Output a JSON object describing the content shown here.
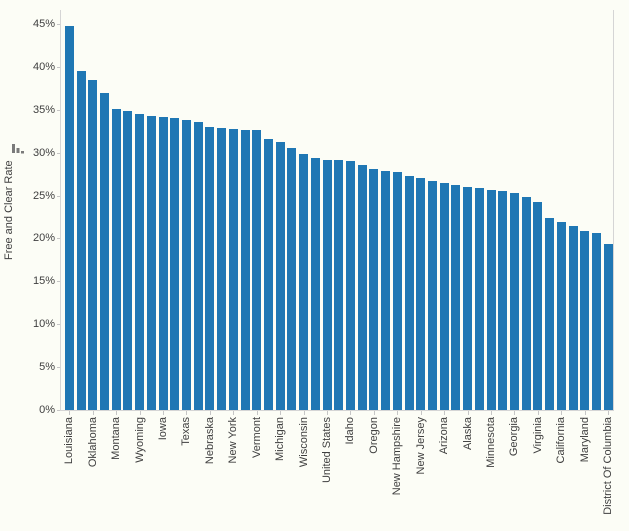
{
  "chart_data": {
    "type": "bar",
    "title": "",
    "xlabel": "",
    "ylabel": "Free and Clear Rate",
    "y_tick_labels": [
      "0%",
      "5%",
      "10%",
      "15%",
      "20%",
      "25%",
      "30%",
      "35%",
      "40%",
      "45%"
    ],
    "y_tick_values": [
      0,
      5,
      10,
      15,
      20,
      25,
      30,
      35,
      40,
      45
    ],
    "ylim": [
      0,
      46.7
    ],
    "grid": false,
    "legend_position": "none",
    "sort_order": "descending",
    "bar_color": "#1f77b4",
    "axis_color": "#d5d5d5",
    "tick_color": "#c6c6c6",
    "text_color": "#3f3f3f",
    "background_color": "#fcfdf6",
    "sort_icon_color": "#7a7a7a",
    "icons": {
      "y_axis_sort": "sort-descending-icon"
    },
    "categories": [
      "Louisiana",
      "",
      "Oklahoma",
      "",
      "Montana",
      "",
      "Wyoming",
      "",
      "Iowa",
      "",
      "Texas",
      "",
      "Nebraska",
      "",
      "New York",
      "",
      "Vermont",
      "",
      "Michigan",
      "",
      "Wisconsin",
      "",
      "United States",
      "",
      "Idaho",
      "",
      "Oregon",
      "",
      "New Hampshire",
      "",
      "New Jersey",
      "",
      "Arizona",
      "",
      "Alaska",
      "",
      "Minnesota",
      "",
      "Georgia",
      "",
      "Virginia",
      "",
      "California",
      "",
      "Maryland",
      "",
      "District Of Columbia"
    ],
    "values": [
      44.8,
      39.5,
      38.5,
      37.0,
      35.1,
      34.8,
      34.5,
      34.3,
      34.1,
      34.0,
      33.8,
      33.6,
      33.0,
      32.9,
      32.8,
      32.7,
      32.6,
      31.6,
      31.3,
      30.5,
      29.8,
      29.4,
      29.2,
      29.1,
      29.0,
      28.6,
      28.1,
      27.9,
      27.7,
      27.3,
      27.0,
      26.7,
      26.5,
      26.2,
      26.0,
      25.9,
      25.7,
      25.5,
      25.3,
      24.8,
      24.2,
      22.4,
      21.9,
      21.5,
      20.9,
      20.6,
      19.4
    ]
  }
}
